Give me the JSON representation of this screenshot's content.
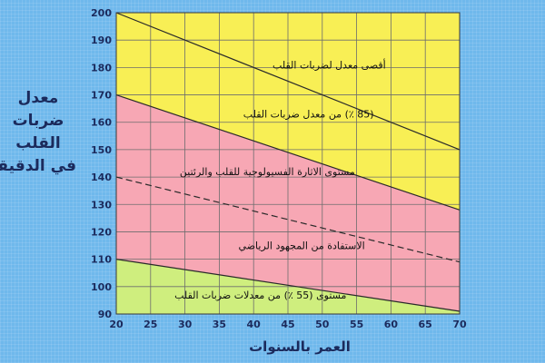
{
  "chart_data": {
    "type": "area",
    "ylabel_lines": [
      "معدل",
      "ضربات",
      "القلب",
      "في الدقيقة"
    ],
    "xlabel": "العمر بالسنوات",
    "xlim": [
      20,
      70
    ],
    "ylim": [
      90,
      200
    ],
    "x_ticks": [
      20,
      25,
      30,
      35,
      40,
      45,
      50,
      55,
      60,
      65,
      70
    ],
    "y_ticks": [
      90,
      100,
      110,
      120,
      130,
      140,
      150,
      160,
      170,
      180,
      190,
      200
    ],
    "grid": true,
    "boundary_lines": [
      {
        "key": "max",
        "x": [
          20,
          70
        ],
        "y": [
          200,
          150
        ],
        "style": "solid"
      },
      {
        "key": "p85",
        "x": [
          20,
          70
        ],
        "y": [
          170,
          128
        ],
        "style": "solid"
      },
      {
        "key": "mid",
        "x": [
          20,
          70
        ],
        "y": [
          140,
          109
        ],
        "style": "dashed"
      },
      {
        "key": "p55",
        "x": [
          20,
          70
        ],
        "y": [
          110,
          91
        ],
        "style": "solid"
      }
    ],
    "zones": [
      {
        "from": "max",
        "to": "p85",
        "color": "#f8ef55"
      },
      {
        "from": "p85",
        "to": "p55",
        "color": "#f7a7b4"
      },
      {
        "from": "p55",
        "to": "bottom",
        "color": "#cfee7e"
      }
    ],
    "annotations": [
      {
        "text": "أقصى معدل لضربات القلب",
        "x": 51,
        "y": 181
      },
      {
        "text": "(85 ٪) من معدل ضربات القلب",
        "x": 48,
        "y": 163
      },
      {
        "text": "مستوى الاثارة الفسيولوجية للقلب والرئتين",
        "x": 42,
        "y": 142
      },
      {
        "text": "الاستفادة من المجهود الرياضي",
        "x": 47,
        "y": 115
      },
      {
        "text": "مستوى (55 ٪) من معدلات ضربات القلب",
        "x": 41,
        "y": 97
      }
    ],
    "colors": {
      "top_region": "#f8ef55",
      "grid": "#6d6d6d",
      "line": "#2a2a2a",
      "axis_text": "#1b2a5c"
    }
  }
}
